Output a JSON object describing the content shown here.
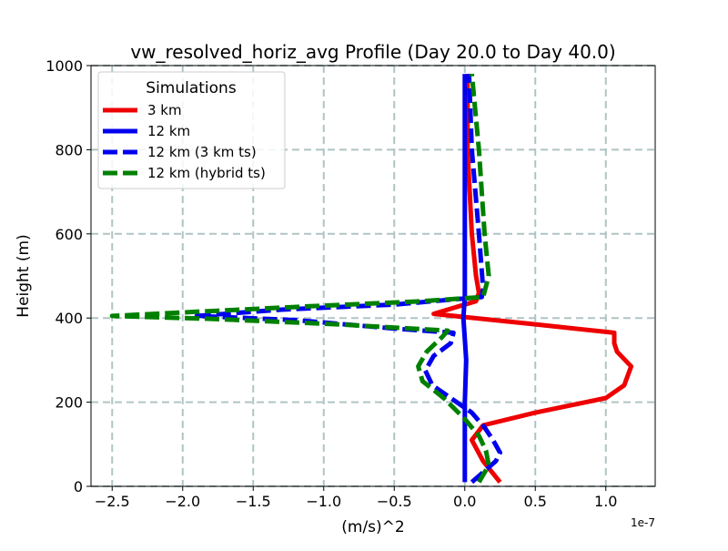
{
  "chart_data": {
    "type": "line",
    "title": "vw_resolved_horiz_avg Profile (Day 20.0 to Day 40.0)",
    "xlabel": "(m/s)^2",
    "ylabel": "Height (m)",
    "x_scale_note": "1e-7",
    "xlim": [
      -2.65,
      1.35
    ],
    "ylim": [
      0,
      1000
    ],
    "grid": true,
    "x_ticks": [
      -2.5,
      -2.0,
      -1.5,
      -1.0,
      -0.5,
      0.0,
      0.5,
      1.0
    ],
    "x_tick_labels": [
      "−2.5",
      "−2.0",
      "−1.5",
      "−1.0",
      "−0.5",
      "0.0",
      "0.5",
      "1.0"
    ],
    "y_ticks": [
      0,
      200,
      400,
      600,
      800,
      1000
    ],
    "y_tick_labels": [
      "0",
      "200",
      "400",
      "600",
      "800",
      "1000"
    ],
    "legend": {
      "title": "Simulations",
      "placement": "top-left"
    },
    "series": [
      {
        "name": "3 km",
        "color": "#ee0000",
        "style": "solid",
        "points": [
          [
            0.25,
            10
          ],
          [
            0.13,
            60
          ],
          [
            0.05,
            110
          ],
          [
            0.13,
            145
          ],
          [
            0.5,
            175
          ],
          [
            1.0,
            210
          ],
          [
            1.13,
            240
          ],
          [
            1.18,
            285
          ],
          [
            1.08,
            320
          ],
          [
            1.06,
            340
          ],
          [
            1.06,
            365
          ],
          [
            0.5,
            385
          ],
          [
            -0.22,
            410
          ],
          [
            0.08,
            440
          ],
          [
            0.1,
            460
          ],
          [
            0.08,
            500
          ],
          [
            0.05,
            600
          ],
          [
            0.02,
            800
          ],
          [
            0.02,
            980
          ]
        ]
      },
      {
        "name": "12 km",
        "color": "#0000ee",
        "style": "solid",
        "points": [
          [
            0.0,
            10
          ],
          [
            0.0,
            100
          ],
          [
            0.0,
            200
          ],
          [
            0.01,
            300
          ],
          [
            0.0,
            350
          ],
          [
            -0.01,
            400
          ],
          [
            0.0,
            450
          ],
          [
            0.0,
            600
          ],
          [
            0.0,
            800
          ],
          [
            0.0,
            980
          ]
        ]
      },
      {
        "name": "12 km (3 km ts)",
        "color": "#0000ee",
        "style": "dashed",
        "points": [
          [
            0.05,
            10
          ],
          [
            0.22,
            60
          ],
          [
            0.25,
            80
          ],
          [
            0.2,
            110
          ],
          [
            0.14,
            140
          ],
          [
            0.05,
            175
          ],
          [
            -0.1,
            210
          ],
          [
            -0.23,
            240
          ],
          [
            -0.28,
            275
          ],
          [
            -0.22,
            310
          ],
          [
            -0.1,
            340
          ],
          [
            -0.08,
            365
          ],
          [
            -0.5,
            375
          ],
          [
            -1.2,
            395
          ],
          [
            -1.9,
            405
          ],
          [
            -1.3,
            420
          ],
          [
            -0.5,
            432
          ],
          [
            0.12,
            450
          ],
          [
            0.13,
            470
          ],
          [
            0.1,
            600
          ],
          [
            0.05,
            800
          ],
          [
            0.03,
            980
          ]
        ]
      },
      {
        "name": "12 km (hybrid ts)",
        "color": "#008000",
        "style": "dashed",
        "points": [
          [
            0.1,
            10
          ],
          [
            0.17,
            50
          ],
          [
            0.15,
            85
          ],
          [
            0.1,
            120
          ],
          [
            0.0,
            160
          ],
          [
            -0.15,
            210
          ],
          [
            -0.3,
            250
          ],
          [
            -0.33,
            285
          ],
          [
            -0.27,
            320
          ],
          [
            -0.16,
            355
          ],
          [
            -0.12,
            370
          ],
          [
            -0.9,
            385
          ],
          [
            -1.8,
            398
          ],
          [
            -2.5,
            405
          ],
          [
            -1.9,
            415
          ],
          [
            -1.1,
            428
          ],
          [
            -0.3,
            440
          ],
          [
            0.13,
            450
          ],
          [
            0.17,
            500
          ],
          [
            0.14,
            600
          ],
          [
            0.1,
            800
          ],
          [
            0.05,
            980
          ]
        ]
      }
    ]
  }
}
